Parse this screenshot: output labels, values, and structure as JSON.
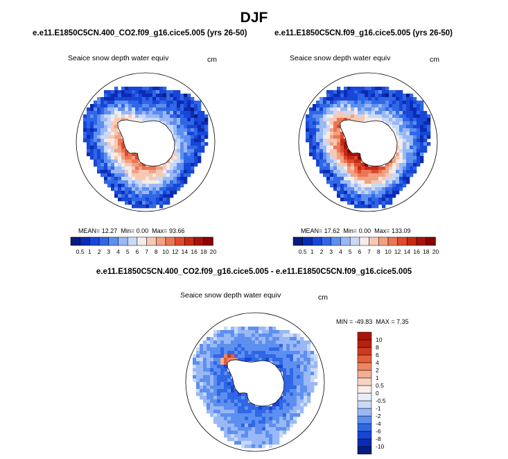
{
  "season": "DJF",
  "colors": {
    "palette": [
      "#081c7e",
      "#0b2bb5",
      "#1846d6",
      "#2f67e6",
      "#5d8ff0",
      "#9ab8f6",
      "#c9daf8",
      "#f5ecea",
      "#f7c9b3",
      "#f2a183",
      "#ec7654",
      "#dd4a2c",
      "#c62a14",
      "#a5120c",
      "#870002"
    ],
    "diff_palette": [
      "#081c7e",
      "#0b2bb5",
      "#1846d6",
      "#2f67e6",
      "#5d8ff0",
      "#9ab8f6",
      "#c9daf8",
      "#f4f4f6",
      "#f7d4c2",
      "#f4ae92",
      "#ee8662",
      "#e45f3a",
      "#cf3a1f",
      "#a8150d"
    ],
    "land_outline": "#000000"
  },
  "panels": {
    "left": {
      "case_title": "e.e11.E1850C5CN.400_CO2.f09_g16.cice5.005 (yrs 26-50)",
      "variable": "Seaice snow depth water equiv",
      "units": "cm",
      "mean_label": "MEAN=",
      "mean": "12.27",
      "min_label": "Min=",
      "min": "0.00",
      "max_label": "Max=",
      "max": "93.66"
    },
    "right": {
      "case_title": "e.e11.E1850C5CN.f09_g16.cice5.005 (yrs 26-50)",
      "variable": "Seaice snow depth water equiv",
      "units": "cm",
      "mean_label": "MEAN=",
      "mean": "17.62",
      "min_label": "Min=",
      "min": "0.00",
      "max_label": "Max=",
      "max": "133.09"
    },
    "diff": {
      "title": "e.e11.E1850C5CN.400_CO2.f09_g16.cice5.005 - e.e11.E1850C5CN.f09_g16.cice5.005",
      "variable": "Seaice snow depth water equiv",
      "units": "cm",
      "min_label": "MIN =",
      "min": "-49.83",
      "max_label": "MAX =",
      "max": "7.35"
    }
  },
  "chart_data": [
    {
      "type": "heatmap",
      "projection": "south-polar-stereographic",
      "title": "e.e11.E1850C5CN.400_CO2.f09_g16.cice5.005 (yrs 26-50)",
      "variable": "Seaice snow depth water equiv",
      "units": "cm",
      "colorbar_levels": [
        0.5,
        1,
        2,
        3,
        4,
        5,
        6,
        7,
        8,
        10,
        12,
        14,
        16,
        18,
        20
      ],
      "stats": {
        "mean": 12.27,
        "min": 0.0,
        "max": 93.66
      },
      "ring": {
        "inner_deg": 68,
        "band": 11,
        "peak": 19
      }
    },
    {
      "type": "heatmap",
      "projection": "south-polar-stereographic",
      "title": "e.e11.E1850C5CN.f09_g16.cice5.005 (yrs 26-50)",
      "variable": "Seaice snow depth water equiv",
      "units": "cm",
      "colorbar_levels": [
        0.5,
        1,
        2,
        3,
        4,
        5,
        6,
        7,
        8,
        10,
        12,
        14,
        16,
        18,
        20
      ],
      "stats": {
        "mean": 17.62,
        "min": 0.0,
        "max": 133.09
      },
      "ring": {
        "inner_deg": 68,
        "band": 14,
        "peak": 24
      }
    },
    {
      "type": "heatmap",
      "projection": "south-polar-stereographic",
      "title": "e.e11.E1850C5CN.400_CO2.f09_g16.cice5.005 - e.e11.E1850C5CN.f09_g16.cice5.005",
      "variable": "Seaice snow depth water equiv",
      "units": "cm",
      "colorbar_levels": [
        -10,
        -8,
        -6,
        -4,
        -2,
        -1,
        -0.5,
        0,
        0.5,
        1,
        2,
        4,
        6,
        8,
        10
      ],
      "stats": {
        "min": -49.83,
        "max": 7.35
      }
    }
  ]
}
